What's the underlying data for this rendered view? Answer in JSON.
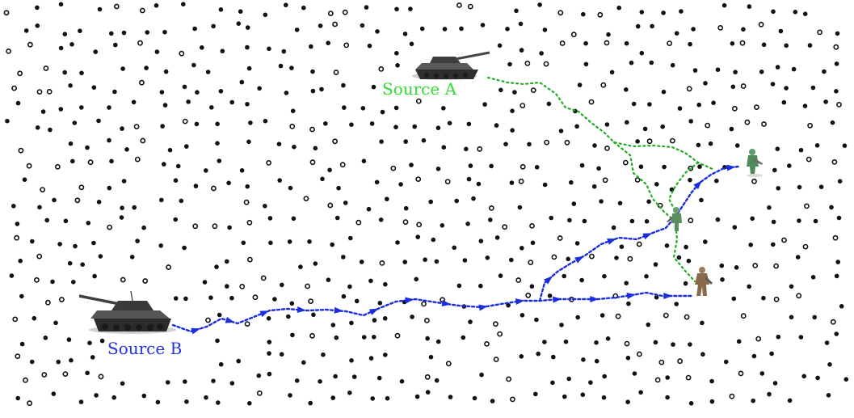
{
  "labels": {
    "source_a": "Source A",
    "source_b": "Source B"
  },
  "colors": {
    "background": "#ffffff",
    "node": "#111111",
    "source_a_path": "#22aa22",
    "source_a_text": "#33dd33",
    "source_b_path": "#1a2ee0",
    "source_b_text": "#2233dd",
    "tank": "#3a3a3a",
    "soldier_green": "#4e8a5a",
    "soldier_brown": "#8a6a4a"
  },
  "icons": {
    "source_a": "tank-icon",
    "source_b": "tank-icon",
    "sinks": [
      "soldier-icon",
      "soldier-icon",
      "soldier-icon"
    ]
  }
}
